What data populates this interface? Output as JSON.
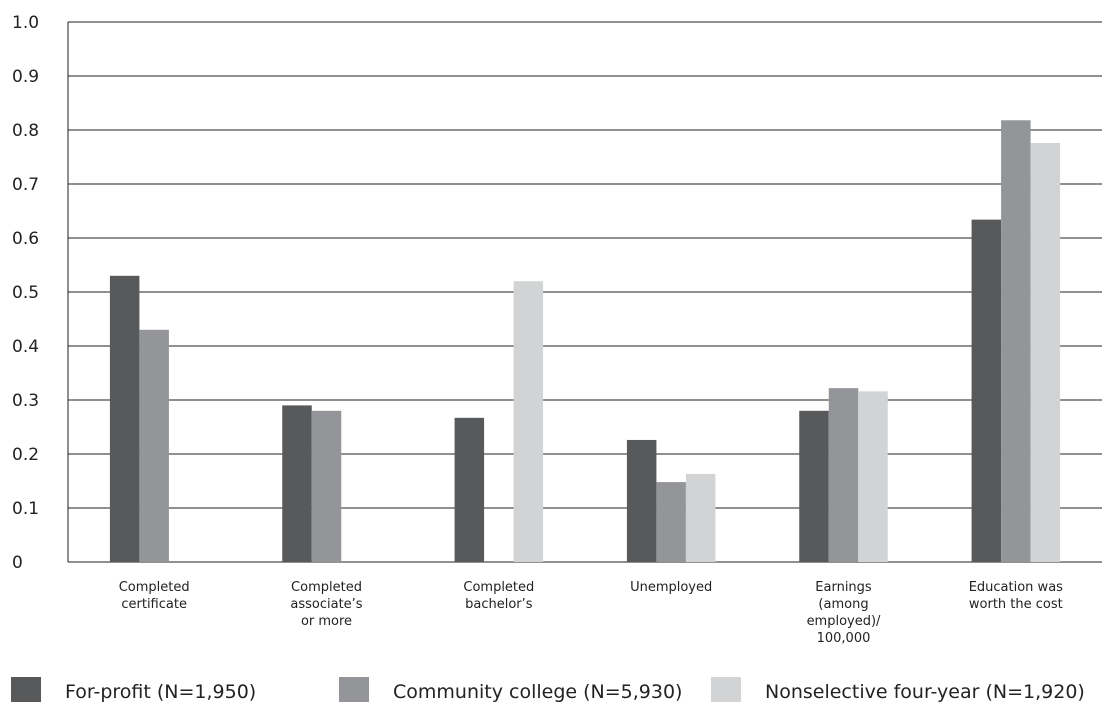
{
  "chart_data": {
    "type": "bar",
    "categories": [
      [
        "Completed",
        "certificate"
      ],
      [
        "Completed",
        "associate’s",
        "or more"
      ],
      [
        "Completed",
        "bachelor’s"
      ],
      [
        "Unemployed"
      ],
      [
        "Earnings",
        "(among",
        "employed)/",
        "100,000"
      ],
      [
        "Education was",
        "worth the cost"
      ]
    ],
    "series": [
      {
        "name": "For-profit (N=1,950)",
        "color": "#58595b",
        "values": [
          0.53,
          0.29,
          0.267,
          0.226,
          0.28,
          0.634
        ]
      },
      {
        "name": "Community college (N=5,930)",
        "color": "#939598",
        "values": [
          0.43,
          0.28,
          null,
          0.148,
          0.322,
          0.818
        ]
      },
      {
        "name": "Nonselective four-year (N=1,920)",
        "color": "#d1d3d4",
        "values": [
          null,
          null,
          0.52,
          0.163,
          0.316,
          0.776
        ]
      }
    ],
    "yticks": [
      "0",
      "0.1",
      "0.2",
      "0.3",
      "0.4",
      "0.5",
      "0.6",
      "0.7",
      "0.8",
      "0.9",
      "1.0"
    ],
    "ylim": [
      0,
      1.0
    ],
    "grid": true,
    "legend_position": "bottom"
  }
}
